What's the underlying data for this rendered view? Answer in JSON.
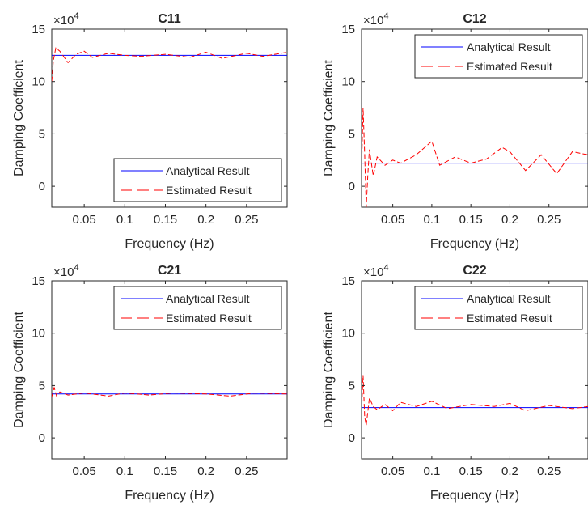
{
  "chart_data": [
    {
      "type": "line",
      "title": "C11",
      "xlabel": "Frequency (Hz)",
      "ylabel": "Damping Coefficient",
      "exponent_label": "×10",
      "exponent_power": "4",
      "xlim": [
        0.01,
        0.3
      ],
      "ylim": [
        -2,
        15
      ],
      "xticks": [
        "0.05",
        "0.1",
        "0.15",
        "0.2",
        "0.25"
      ],
      "yticks": [
        "0",
        "5",
        "10",
        "15"
      ],
      "legend_position": "bottom-right",
      "series": [
        {
          "name": "Analytical Result",
          "color": "#0000ff",
          "style": "solid",
          "x": [
            0.01,
            0.3
          ],
          "y": [
            12.5,
            12.5
          ]
        },
        {
          "name": "Estimated Result",
          "color": "#ff0000",
          "style": "dashed",
          "x": [
            0.01,
            0.012,
            0.015,
            0.02,
            0.03,
            0.04,
            0.05,
            0.06,
            0.08,
            0.1,
            0.12,
            0.15,
            0.18,
            0.2,
            0.22,
            0.25,
            0.27,
            0.3
          ],
          "y": [
            10.0,
            12.0,
            13.2,
            12.9,
            11.8,
            12.6,
            12.9,
            12.3,
            12.7,
            12.5,
            12.4,
            12.6,
            12.3,
            12.8,
            12.2,
            12.7,
            12.4,
            12.8
          ]
        }
      ]
    },
    {
      "type": "line",
      "title": "C12",
      "xlabel": "Frequency (Hz)",
      "ylabel": "Damping Coefficient",
      "exponent_label": "×10",
      "exponent_power": "4",
      "xlim": [
        0.01,
        0.3
      ],
      "ylim": [
        -2,
        15
      ],
      "xticks": [
        "0.05",
        "0.1",
        "0.15",
        "0.2",
        "0.25"
      ],
      "yticks": [
        "0",
        "5",
        "10",
        "15"
      ],
      "legend_position": "top-right",
      "series": [
        {
          "name": "Analytical Result",
          "color": "#0000ff",
          "style": "solid",
          "x": [
            0.01,
            0.3
          ],
          "y": [
            2.2,
            2.2
          ]
        },
        {
          "name": "Estimated Result",
          "color": "#ff0000",
          "style": "dashed",
          "x": [
            0.01,
            0.012,
            0.014,
            0.016,
            0.018,
            0.02,
            0.025,
            0.03,
            0.04,
            0.05,
            0.06,
            0.08,
            0.1,
            0.11,
            0.13,
            0.15,
            0.17,
            0.19,
            0.2,
            0.22,
            0.24,
            0.26,
            0.28,
            0.3
          ],
          "y": [
            1.5,
            7.5,
            3.0,
            -2.0,
            1.0,
            3.5,
            1.0,
            2.8,
            2.0,
            2.5,
            2.2,
            3.0,
            4.3,
            2.0,
            2.8,
            2.2,
            2.6,
            3.7,
            3.3,
            1.5,
            3.0,
            1.2,
            3.3,
            3.0
          ]
        }
      ]
    },
    {
      "type": "line",
      "title": "C21",
      "xlabel": "Frequency (Hz)",
      "ylabel": "Damping Coefficient",
      "exponent_label": "×10",
      "exponent_power": "4",
      "xlim": [
        0.01,
        0.3
      ],
      "ylim": [
        -2,
        15
      ],
      "xticks": [
        "0.05",
        "0.1",
        "0.15",
        "0.2",
        "0.25"
      ],
      "yticks": [
        "0",
        "5",
        "10",
        "15"
      ],
      "legend_position": "top-right",
      "series": [
        {
          "name": "Analytical Result",
          "color": "#0000ff",
          "style": "solid",
          "x": [
            0.01,
            0.3
          ],
          "y": [
            4.2,
            4.2
          ]
        },
        {
          "name": "Estimated Result",
          "color": "#ff0000",
          "style": "dashed",
          "x": [
            0.01,
            0.013,
            0.016,
            0.02,
            0.03,
            0.05,
            0.08,
            0.1,
            0.13,
            0.16,
            0.2,
            0.23,
            0.26,
            0.3
          ],
          "y": [
            3.9,
            4.8,
            4.0,
            4.4,
            4.1,
            4.3,
            4.0,
            4.3,
            4.1,
            4.3,
            4.2,
            4.0,
            4.3,
            4.2
          ]
        }
      ]
    },
    {
      "type": "line",
      "title": "C22",
      "xlabel": "Frequency (Hz)",
      "ylabel": "Damping Coefficient",
      "exponent_label": "×10",
      "exponent_power": "4",
      "xlim": [
        0.01,
        0.3
      ],
      "ylim": [
        -2,
        15
      ],
      "xticks": [
        "0.05",
        "0.1",
        "0.15",
        "0.2",
        "0.25"
      ],
      "yticks": [
        "0",
        "5",
        "10",
        "15"
      ],
      "legend_position": "top-right",
      "series": [
        {
          "name": "Analytical Result",
          "color": "#0000ff",
          "style": "solid",
          "x": [
            0.01,
            0.3
          ],
          "y": [
            2.9,
            2.9
          ]
        },
        {
          "name": "Estimated Result",
          "color": "#ff0000",
          "style": "dashed",
          "x": [
            0.01,
            0.012,
            0.014,
            0.016,
            0.02,
            0.025,
            0.03,
            0.04,
            0.05,
            0.06,
            0.08,
            0.1,
            0.12,
            0.15,
            0.18,
            0.2,
            0.22,
            0.25,
            0.28,
            0.3
          ],
          "y": [
            2.5,
            6.0,
            2.0,
            1.2,
            3.8,
            3.0,
            2.7,
            3.2,
            2.6,
            3.4,
            3.0,
            3.5,
            2.8,
            3.2,
            3.0,
            3.3,
            2.6,
            3.1,
            2.8,
            3.0
          ]
        }
      ]
    }
  ]
}
